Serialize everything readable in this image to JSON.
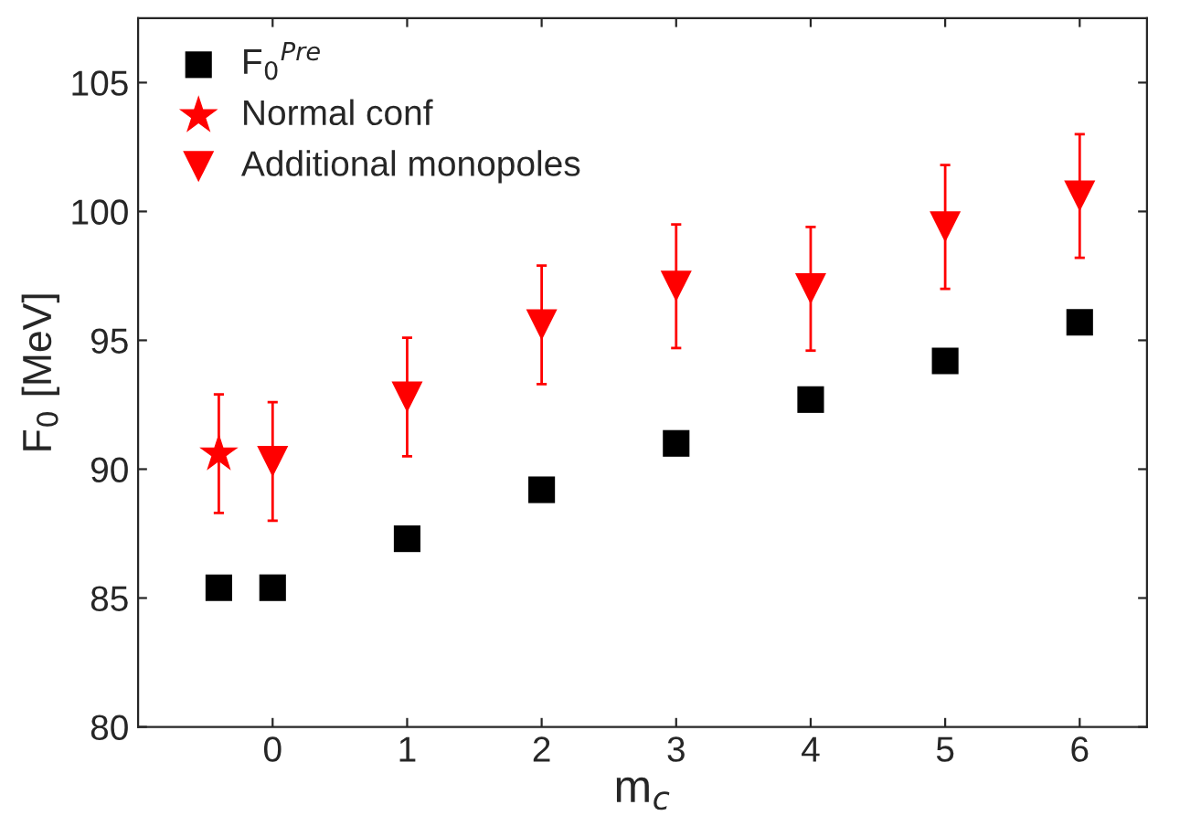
{
  "chart_data": {
    "type": "scatter",
    "xlabel": "m$_{c}$",
    "ylabel": "F$_{0}$ [MeV]",
    "xlim": [
      -1,
      6.5
    ],
    "xticks": [
      0,
      1,
      2,
      3,
      4,
      5,
      6
    ],
    "ylim": [
      80,
      107.5
    ],
    "yticks": [
      80,
      85,
      90,
      95,
      100,
      105
    ],
    "grid": false,
    "legend": "top left",
    "series": [
      {
        "name": "F$_{0}$$^{Pre}$",
        "color": "#000000",
        "marker": "square",
        "x": [
          -0.4,
          0,
          1,
          2,
          3,
          4,
          5,
          6
        ],
        "values": [
          85.4,
          85.4,
          87.3,
          89.2,
          91.0,
          92.7,
          94.2,
          95.7
        ]
      },
      {
        "name": "Normal conf",
        "color": "#ff0000",
        "marker": "star",
        "x": [
          -0.4
        ],
        "values": [
          90.6
        ],
        "errors": [
          2.3
        ]
      },
      {
        "name": "Additional monopoles",
        "color": "#ff0000",
        "marker": "triangle",
        "x": [
          0,
          1,
          2,
          3,
          4,
          5,
          6
        ],
        "values": [
          90.3,
          92.8,
          95.6,
          97.1,
          97.0,
          99.4,
          100.6
        ],
        "errors": [
          2.3,
          2.3,
          2.3,
          2.4,
          2.4,
          2.4,
          2.4
        ]
      }
    ]
  }
}
